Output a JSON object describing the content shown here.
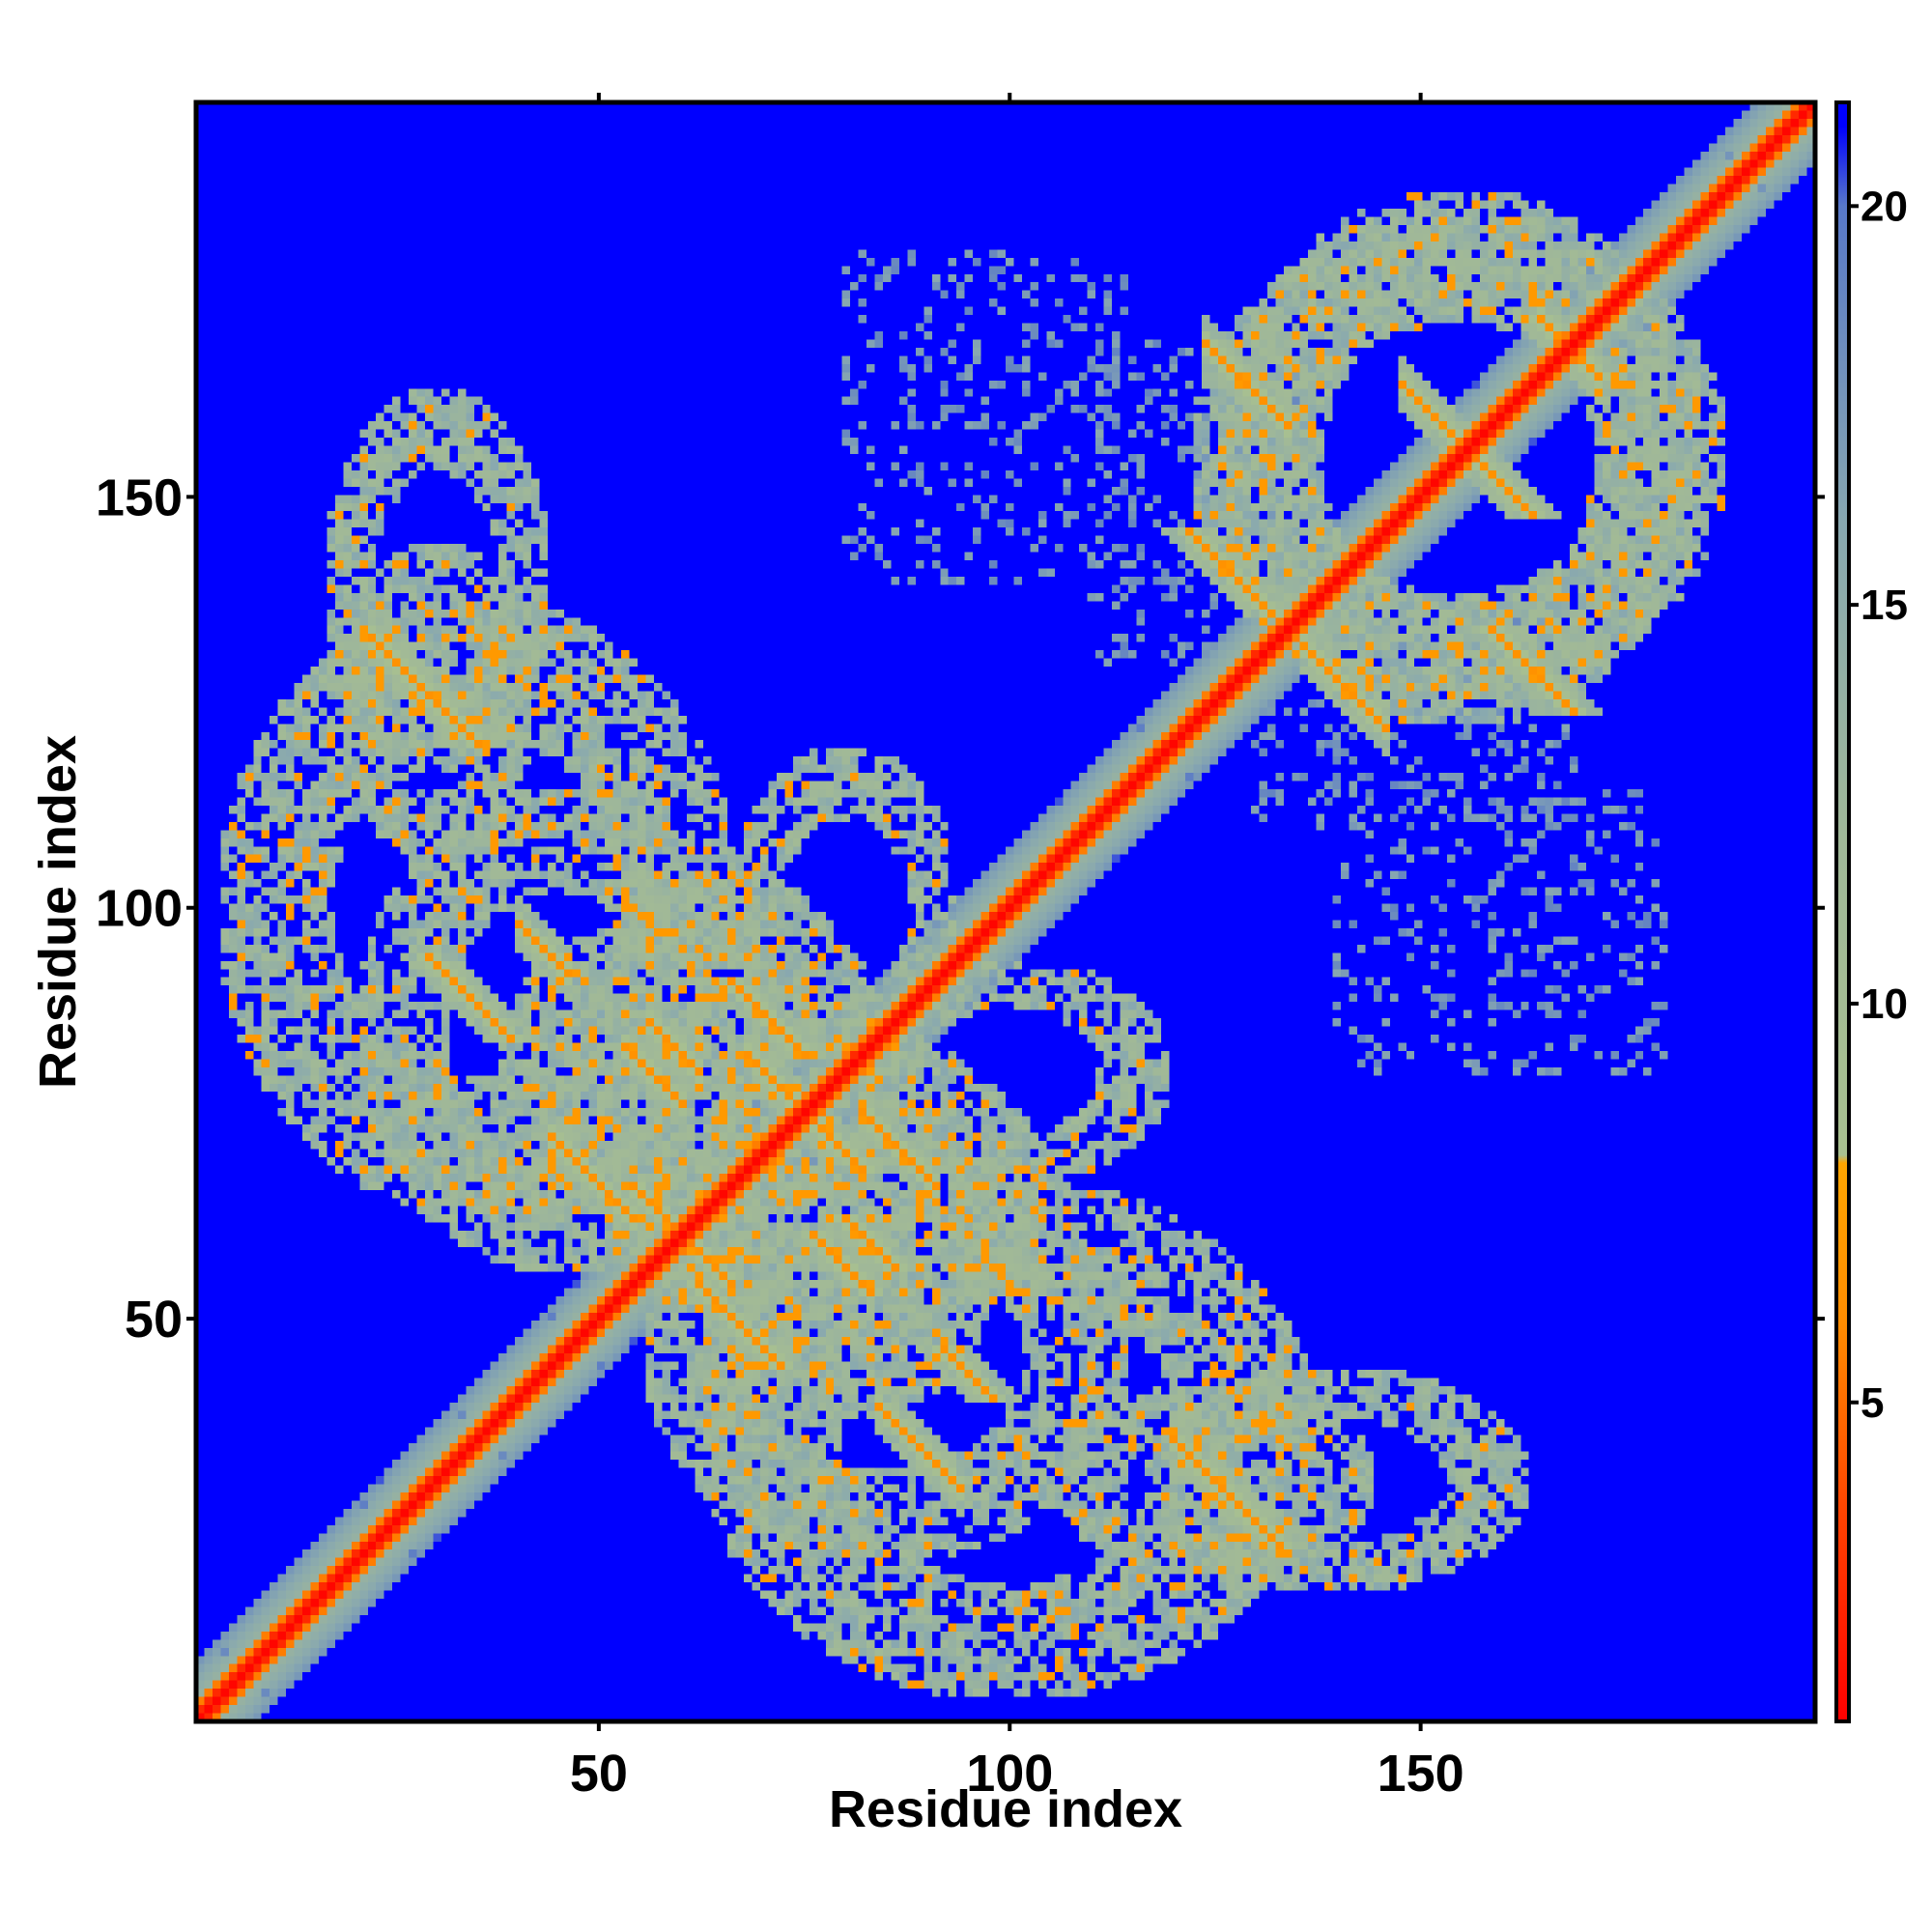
{
  "chart_data": {
    "type": "heatmap",
    "title": "",
    "xlabel": "Residue index",
    "ylabel": "Residue index",
    "xlim": [
      1,
      198
    ],
    "ylim": [
      1,
      198
    ],
    "x_ticks": [
      50,
      100,
      150
    ],
    "y_ticks": [
      50,
      100,
      150
    ],
    "colorbar": {
      "range": [
        1,
        21.3
      ],
      "ticks": [
        5,
        10,
        15,
        20
      ],
      "colors": [
        {
          "value": 1,
          "color": "#ff0000"
        },
        {
          "value": 3.5,
          "color": "#ff4000"
        },
        {
          "value": 6,
          "color": "#ff8c00"
        },
        {
          "value": 8,
          "color": "#ffa500"
        },
        {
          "value": 8.1,
          "color": "#a8c090"
        },
        {
          "value": 12,
          "color": "#a0b898"
        },
        {
          "value": 16,
          "color": "#88a8b0"
        },
        {
          "value": 20,
          "color": "#5878c8"
        },
        {
          "value": 21,
          "color": "#0000ff"
        }
      ]
    },
    "background_value": 21,
    "background_color": "#0000ff",
    "symmetric": true,
    "diagonal": {
      "value": 1.5,
      "width": 1.6
    },
    "near_diagonal_band": {
      "value": 11,
      "width": 7
    },
    "features": [
      {
        "kind": "antiparallel",
        "sum": 155,
        "i_range": [
          22,
          32
        ],
        "value": 6.5,
        "width": 1.4
      },
      {
        "kind": "antiparallel",
        "sum": 138,
        "i_range": [
          40,
          46
        ],
        "value": 6.5,
        "width": 1.3
      },
      {
        "kind": "antiparallel",
        "sum": 150,
        "i_range": [
          68,
          74
        ],
        "value": 6.5,
        "width": 1.3
      },
      {
        "kind": "antiparallel",
        "sum": 116,
        "i_range": [
          44,
          54
        ],
        "value": 6.5,
        "width": 1.3
      },
      {
        "kind": "antiparallel",
        "sum": 120,
        "i_range": [
          60,
          66
        ],
        "value": 6.5,
        "width": 1.3
      },
      {
        "kind": "antiparallel",
        "sum": 142,
        "i_range": [
          56,
          62
        ],
        "value": 6.5,
        "width": 1.3
      },
      {
        "kind": "antiparallel",
        "sum": 136,
        "i_range": [
          53,
          60
        ],
        "value": 6.5,
        "width": 1.3
      },
      {
        "kind": "antiparallel",
        "sum": 123,
        "i_range": [
          84,
          94
        ],
        "value": 6.5,
        "width": 1.3
      },
      {
        "kind": "antiparallel",
        "sum": 157,
        "i_range": [
          82,
          91
        ],
        "value": 6.5,
        "width": 1.3
      },
      {
        "kind": "antiparallel",
        "sum": 155,
        "i_range": [
          120,
          132
        ],
        "value": 6.5,
        "width": 1.3
      },
      {
        "kind": "antiparallel",
        "sum": 268,
        "i_range": [
          136,
          146
        ],
        "value": 6.5,
        "width": 1.3
      },
      {
        "kind": "antiparallel",
        "sum": 293,
        "i_range": [
          124,
          134
        ],
        "value": 6.5,
        "width": 1.3
      },
      {
        "kind": "antiparallel",
        "sum": 337,
        "i_range": [
          165,
          172
        ],
        "value": 6.5,
        "width": 1.3
      },
      {
        "kind": "antiparallel",
        "sum": 312,
        "i_range": [
          148,
          158
        ],
        "value": 6.5,
        "width": 1.3
      },
      {
        "kind": "blob",
        "x": 35,
        "y": 100,
        "rx": 32,
        "ry": 38,
        "value": 13
      },
      {
        "kind": "blob",
        "x": 65,
        "y": 80,
        "rx": 20,
        "ry": 25,
        "value": 13
      },
      {
        "kind": "blob",
        "x": 30,
        "y": 140,
        "rx": 14,
        "ry": 24,
        "value": 13
      },
      {
        "kind": "blob",
        "x": 85,
        "y": 45,
        "rx": 30,
        "ry": 25,
        "value": 13
      },
      {
        "kind": "blob",
        "x": 125,
        "y": 30,
        "rx": 20,
        "ry": 12,
        "value": 13
      },
      {
        "kind": "blob",
        "x": 100,
        "y": 80,
        "rx": 20,
        "ry": 14,
        "value": 13
      },
      {
        "kind": "blob",
        "x": 155,
        "y": 155,
        "rx": 30,
        "ry": 33,
        "value": 13
      },
      {
        "kind": "blob",
        "x": 55,
        "y": 80,
        "rx": 18,
        "ry": 18,
        "value": 13
      },
      {
        "kind": "sparse",
        "x": [
          110,
          135
        ],
        "y": [
          130,
          170
        ],
        "value": 16,
        "density": 0.18
      },
      {
        "kind": "sparse",
        "x": [
          140,
          180
        ],
        "y": [
          80,
          115
        ],
        "value": 16,
        "density": 0.16
      }
    ]
  }
}
